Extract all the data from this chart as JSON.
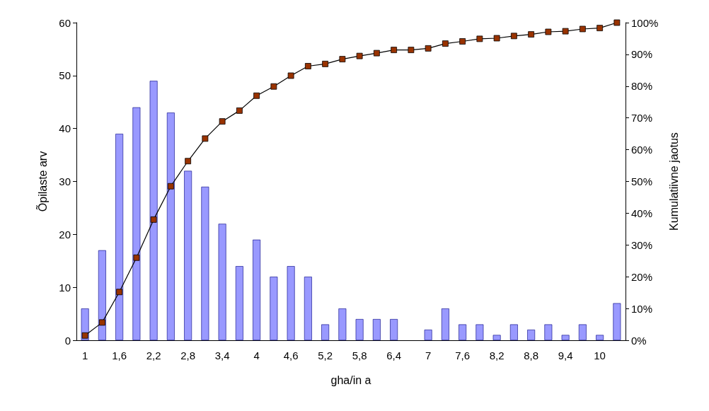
{
  "chart_data": {
    "type": "bar",
    "xlabel": "gha/in a",
    "ylabel": "Õpilaste arv",
    "y2label": "Kumulatiivne jaotus",
    "categories": [
      "1",
      null,
      "1,6",
      null,
      "2,2",
      null,
      "2,8",
      null,
      "3,4",
      null,
      "4",
      null,
      "4,6",
      null,
      "5,2",
      null,
      "5,8",
      null,
      "6,4",
      null,
      "7",
      null,
      "7,6",
      null,
      "8,2",
      null,
      "8,8",
      null,
      "9,4",
      null,
      "10",
      null
    ],
    "series": [
      {
        "color": "#9999ff",
        "values": [
          6,
          17,
          39,
          44,
          49,
          43,
          32,
          29,
          22,
          14,
          19,
          12,
          14,
          12,
          3,
          6,
          4,
          4,
          4,
          0,
          2,
          6,
          3,
          3,
          1,
          3,
          2,
          3,
          1,
          3,
          1,
          7
        ]
      },
      {
        "type": "line",
        "axis": "y2",
        "color": "#993300",
        "marker": "square",
        "line_style": "solid",
        "values": [
          1.5,
          5.6,
          15.2,
          26,
          38,
          48.5,
          56.4,
          63.5,
          68.9,
          72.3,
          77,
          79.9,
          83.3,
          86.3,
          87,
          88.5,
          89.5,
          90.4,
          91.4,
          91.4,
          91.9,
          93.4,
          94.1,
          94.9,
          95.1,
          95.8,
          96.3,
          97.1,
          97.3,
          98,
          98.3,
          100
        ]
      }
    ],
    "ylim": [
      0,
      60
    ],
    "yticks": [
      0,
      10,
      20,
      30,
      40,
      50,
      60
    ],
    "y2lim": [
      0,
      100
    ],
    "y2ticks": [
      {
        "value": 0,
        "label": "0%"
      },
      {
        "value": 10,
        "label": "10%"
      },
      {
        "value": 20,
        "label": "20%"
      },
      {
        "value": 30,
        "label": "30%"
      },
      {
        "value": 40,
        "label": "40%"
      },
      {
        "value": 50,
        "label": "50%"
      },
      {
        "value": 60,
        "label": "60%"
      },
      {
        "value": 70,
        "label": "70%"
      },
      {
        "value": 80,
        "label": "80%"
      },
      {
        "value": 90,
        "label": "90%"
      },
      {
        "value": 100,
        "label": "100%"
      }
    ],
    "grid": false
  }
}
